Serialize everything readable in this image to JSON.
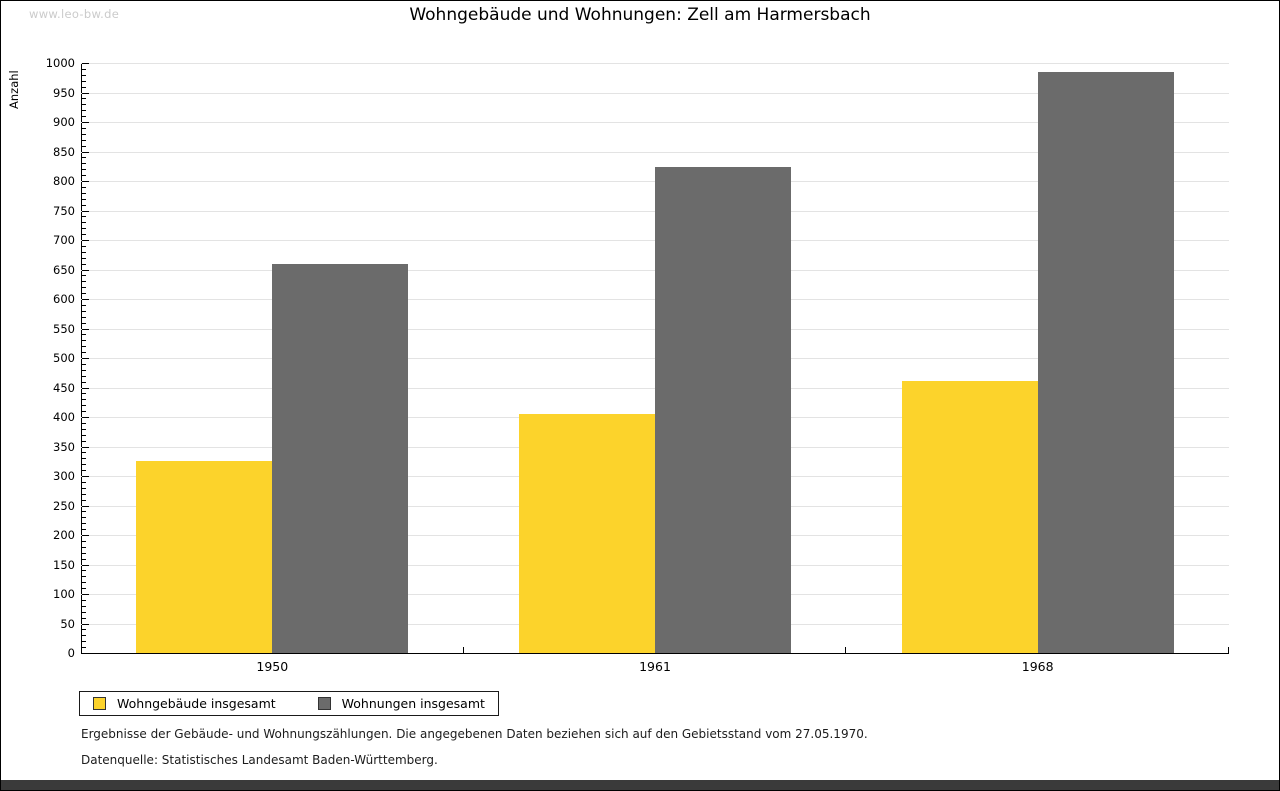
{
  "page": {
    "watermark": "www.leo-bw.de",
    "title": "Wohngebäude und Wohnungen: Zell am Harmersbach"
  },
  "chart_data": {
    "type": "bar",
    "title": "Wohngebäude und Wohnungen: Zell am Harmersbach",
    "ylabel": "Anzahl",
    "xlabel": "",
    "categories": [
      "1950",
      "1961",
      "1968"
    ],
    "series": [
      {
        "name": "Wohngebäude insgesamt",
        "color": "#fcd32b",
        "values": [
          325,
          405,
          461
        ]
      },
      {
        "name": "Wohnungen insgesamt",
        "color": "#6b6b6b",
        "values": [
          660,
          824,
          985
        ]
      }
    ],
    "ylim": [
      0,
      1000
    ],
    "ytick_step": 50,
    "minor_tick_step": 10,
    "grid": true,
    "gridline_color": "#e3e3e3",
    "legend_position": "bottom-left"
  },
  "footer": {
    "line1": "Ergebnisse der Gebäude- und Wohnungszählungen. Die angegebenen Daten beziehen sich auf den Gebietsstand vom 27.05.1970.",
    "line2": "Datenquelle: Statistisches Landesamt Baden-Württemberg."
  }
}
